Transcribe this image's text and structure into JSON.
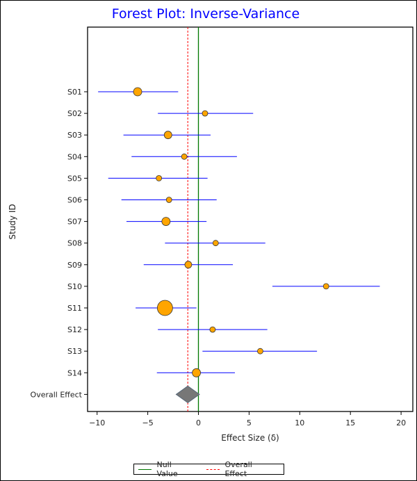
{
  "chart_data": {
    "type": "forest",
    "title": "Forest Plot: Inverse-Variance",
    "xlabel": "Effect Size (δ)",
    "ylabel": "Study ID",
    "xlim": [
      -11,
      21
    ],
    "xticks": [
      -10,
      -5,
      0,
      5,
      10,
      15,
      20
    ],
    "grid": false,
    "legend_position": "bottom",
    "null_value": 0,
    "studies": [
      {
        "id": "S01",
        "effect": -6.0,
        "lower": -9.9,
        "upper": -2.0,
        "weight": 6
      },
      {
        "id": "S02",
        "effect": 0.65,
        "lower": -4.0,
        "upper": 5.4,
        "weight": 4
      },
      {
        "id": "S03",
        "effect": -3.0,
        "lower": -7.4,
        "upper": 1.2,
        "weight": 5.5
      },
      {
        "id": "S04",
        "effect": -1.4,
        "lower": -6.6,
        "upper": 3.8,
        "weight": 4
      },
      {
        "id": "S05",
        "effect": -3.9,
        "lower": -8.9,
        "upper": 0.9,
        "weight": 4
      },
      {
        "id": "S06",
        "effect": -2.9,
        "lower": -7.6,
        "upper": 1.8,
        "weight": 4
      },
      {
        "id": "S07",
        "effect": -3.2,
        "lower": -7.1,
        "upper": 0.8,
        "weight": 6
      },
      {
        "id": "S08",
        "effect": 1.7,
        "lower": -3.3,
        "upper": 6.6,
        "weight": 4
      },
      {
        "id": "S09",
        "effect": -1.0,
        "lower": -5.4,
        "upper": 3.4,
        "weight": 5
      },
      {
        "id": "S10",
        "effect": 12.6,
        "lower": 7.3,
        "upper": 17.9,
        "weight": 4
      },
      {
        "id": "S11",
        "effect": -3.3,
        "lower": -6.2,
        "upper": -0.2,
        "weight": 11
      },
      {
        "id": "S12",
        "effect": 1.4,
        "lower": -4.0,
        "upper": 6.8,
        "weight": 4
      },
      {
        "id": "S13",
        "effect": 6.1,
        "lower": 0.4,
        "upper": 11.7,
        "weight": 4
      },
      {
        "id": "S14",
        "effect": -0.2,
        "lower": -4.1,
        "upper": 3.6,
        "weight": 6
      }
    ],
    "overall": {
      "label": "Overall Effect",
      "effect": -1.05,
      "lower": -2.2,
      "upper": 0.1
    },
    "legend": [
      {
        "name": "Null Value",
        "color": "#007700",
        "style": "solid"
      },
      {
        "name": "Overall Effect",
        "color": "#ff0000",
        "style": "dashed"
      }
    ],
    "colors": {
      "title": "#0000ff",
      "ci": "#0000ff",
      "marker": "#ffa500",
      "diamond": "#777777"
    }
  }
}
